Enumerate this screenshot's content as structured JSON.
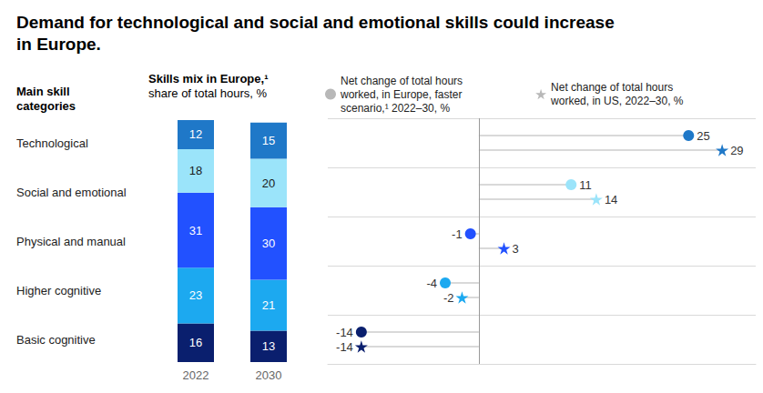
{
  "title": "Demand for technological and social and emotional skills could increase in Europe.",
  "chart_data": [
    {
      "type": "bar",
      "title": "Skills mix in Europe,¹",
      "subtitle": "share of total hours, %",
      "categories": [
        "2022",
        "2030"
      ],
      "stacked": true,
      "data_labels": true,
      "grid": false,
      "tick_labels": "x",
      "ylim": [
        0,
        100
      ],
      "yticks": [
        0,
        100
      ],
      "series": [
        {
          "name": "Technological",
          "color": "#1f78c8",
          "values": [
            12,
            15
          ]
        },
        {
          "name": "Social and emotional",
          "color": "#9be4fa",
          "values": [
            18,
            20
          ]
        },
        {
          "name": "Physical and manual",
          "color": "#2251ff",
          "values": [
            31,
            30
          ]
        },
        {
          "name": "Higher cognitive",
          "color": "#1ca9f0",
          "values": [
            23,
            21
          ]
        },
        {
          "name": "Basic cognitive",
          "color": "#0a1f6e",
          "values": [
            16,
            13
          ]
        }
      ]
    },
    {
      "type": "dot",
      "orientation": "horizontal",
      "ylabel": "Main skill categories",
      "categories": [
        "Technological",
        "Social and emotional",
        "Physical and manual",
        "Higher cognitive",
        "Basic cognitive"
      ],
      "xlim": [
        -18,
        33
      ],
      "xticks": [
        0
      ],
      "tick_labels": "y",
      "data_labels": true,
      "legend": "top",
      "series": [
        {
          "name": "Net change of total hours worked, in Europe, faster scenario,¹ 2022–30, %",
          "marker": "circle",
          "colors": [
            "#1f78c8",
            "#9be4fa",
            "#2251ff",
            "#1ca9f0",
            "#0a1f6e"
          ],
          "values": [
            25,
            11,
            -1,
            -4,
            -14
          ]
        },
        {
          "name": "Net change of total hours worked, in US, 2022–30, %",
          "marker": "star",
          "colors": [
            "#1f78c8",
            "#9be4fa",
            "#2251ff",
            "#1ca9f0",
            "#0a1f6e"
          ],
          "values": [
            29,
            14,
            3,
            -2,
            -14
          ]
        }
      ]
    }
  ]
}
